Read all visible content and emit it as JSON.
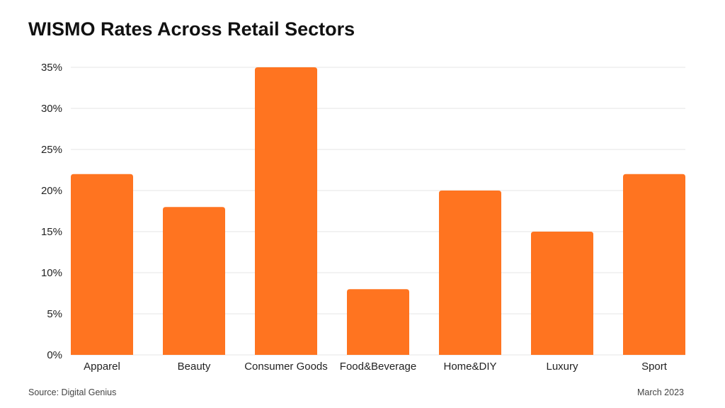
{
  "chart_data": {
    "type": "bar",
    "title": "WISMO Rates Across Retail Sectors",
    "xlabel": "",
    "ylabel": "",
    "categories": [
      "Apparel",
      "Beauty",
      "Consumer Goods",
      "Food&Beverage",
      "Home&DIY",
      "Luxury",
      "Sport"
    ],
    "values": [
      22,
      18,
      35,
      8,
      20,
      15,
      22
    ],
    "unit": "%",
    "ylim": [
      0,
      35
    ],
    "yticks": [
      0,
      5,
      10,
      15,
      20,
      25,
      30,
      35
    ],
    "ytick_labels": [
      "0%",
      "5%",
      "10%",
      "15%",
      "20%",
      "25%",
      "30%",
      "35%"
    ],
    "grid": true,
    "bar_color": "#FF7420",
    "grid_color": "#E6E6E6"
  },
  "footer": {
    "source": "Source: Digital Genius",
    "date": "March 2023"
  }
}
